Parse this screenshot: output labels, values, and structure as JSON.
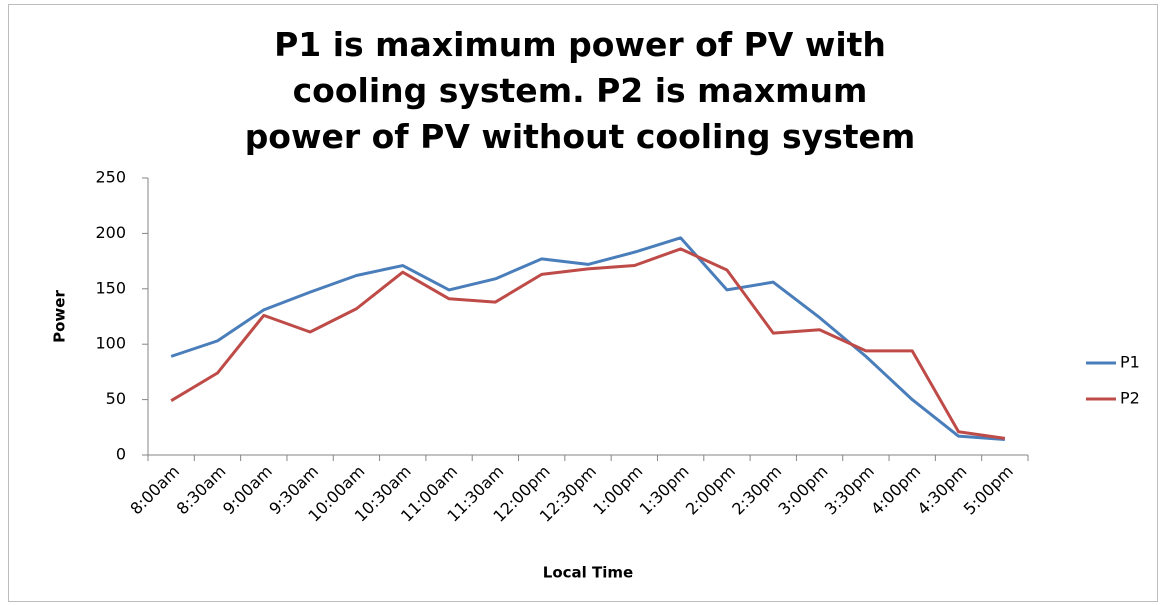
{
  "chart_data": {
    "type": "line",
    "title": "P1 is maximum power of PV with cooling system. P2 is maxmum power of PV without cooling system",
    "x_label": "Local Time",
    "y_label": "Power",
    "categories": [
      "8:00am",
      "8:30am",
      "9:00am",
      "9:30am",
      "10:00am",
      "10:30am",
      "11:00am",
      "11:30am",
      "12:00pm",
      "12:30pm",
      "1:00pm",
      "1:30pm",
      "2:00pm",
      "2:30pm",
      "3:00pm",
      "3:30pm",
      "4:00pm",
      "4:30pm",
      "5:00pm"
    ],
    "series": [
      {
        "name": "P1",
        "color": "#4a7ebb",
        "values": [
          89,
          103,
          131,
          147,
          162,
          171,
          149,
          159,
          177,
          172,
          183,
          196,
          149,
          156,
          124,
          89,
          50,
          17,
          14
        ]
      },
      {
        "name": "P2",
        "color": "#be4b48",
        "values": [
          49,
          74,
          126,
          111,
          132,
          165,
          141,
          138,
          163,
          168,
          171,
          186,
          167,
          110,
          113,
          94,
          94,
          21,
          15
        ]
      }
    ],
    "ylim": [
      0,
      250
    ],
    "yticks": [
      0,
      50,
      100,
      150,
      200,
      250
    ],
    "legend": "right"
  }
}
